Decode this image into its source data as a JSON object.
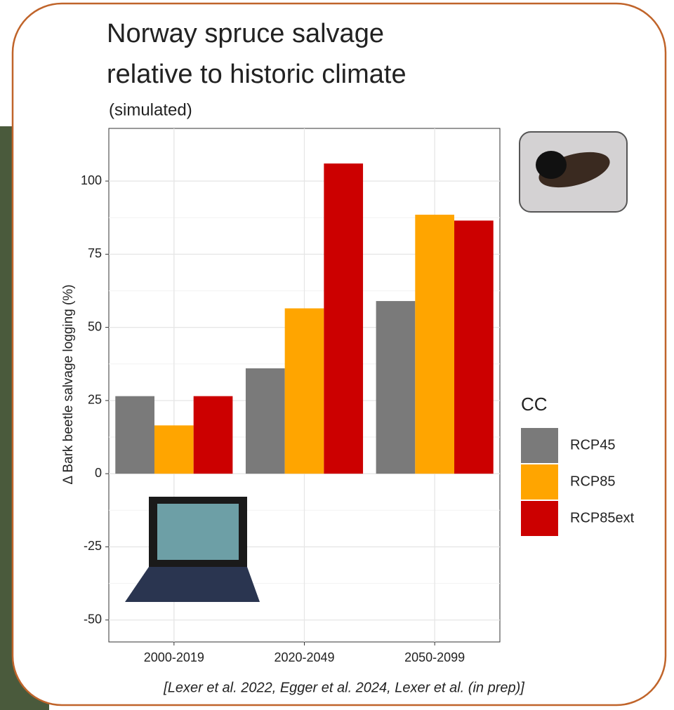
{
  "chart_data": {
    "type": "bar",
    "title": [
      "Norway spruce salvage",
      "relative to historic climate"
    ],
    "subtitle": "(simulated)",
    "y_label": "Δ Bark beetle salvage logging (%)",
    "categories": [
      "2000-2019",
      "2020-2049",
      "2050-2099"
    ],
    "series": [
      {
        "name": "RCP45",
        "color": "#7a7a7a",
        "values": [
          26.5,
          36,
          59
        ]
      },
      {
        "name": "RCP85",
        "color": "#ffa500",
        "values": [
          16.5,
          56.5,
          88.5
        ]
      },
      {
        "name": "RCP85ext",
        "color": "#cc0000",
        "values": [
          26.5,
          106,
          86.5
        ]
      }
    ],
    "ylim": [
      -57.5,
      118
    ],
    "yticks": [
      -50,
      -25,
      0,
      25,
      50,
      75,
      100
    ],
    "grid": true,
    "legend_title": "CC",
    "legend": "right",
    "footnote": "[Lexer et al. 2022, Egger et al. 2024, Lexer et al. (in prep)]"
  }
}
